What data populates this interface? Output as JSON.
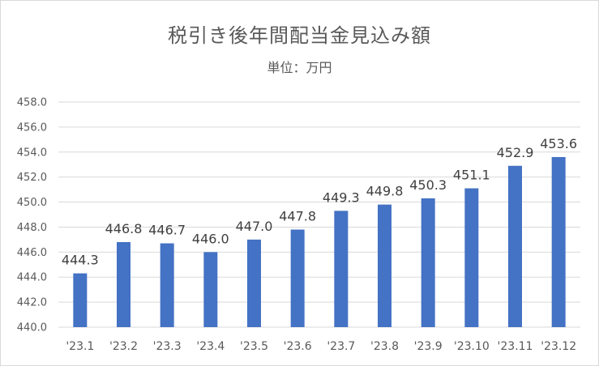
{
  "chart_data": {
    "type": "bar",
    "title": "税引き後年間配当金見込み額",
    "subtitle": "単位：万円",
    "categories": [
      "'23.1",
      "'23.2",
      "'23.3",
      "'23.4",
      "'23.5",
      "'23.6",
      "'23.7",
      "'23.8",
      "'23.9",
      "'23.10",
      "'23.11",
      "'23.12"
    ],
    "values": [
      444.3,
      446.8,
      446.7,
      446.0,
      447.0,
      447.8,
      449.3,
      449.8,
      450.3,
      451.1,
      452.9,
      453.6
    ],
    "data_labels": [
      "444.3",
      "446.8",
      "446.7",
      "446.0",
      "447.0",
      "447.8",
      "449.3",
      "449.8",
      "450.3",
      "451.1",
      "452.9",
      "453.6"
    ],
    "y_ticks": [
      "440.0",
      "442.0",
      "444.0",
      "446.0",
      "448.0",
      "450.0",
      "452.0",
      "454.0",
      "456.0",
      "458.0"
    ],
    "ylim": [
      440,
      458
    ],
    "grid": true,
    "legend": "none",
    "bar_color": "#4472c4",
    "grid_color": "#d9d9d9"
  }
}
